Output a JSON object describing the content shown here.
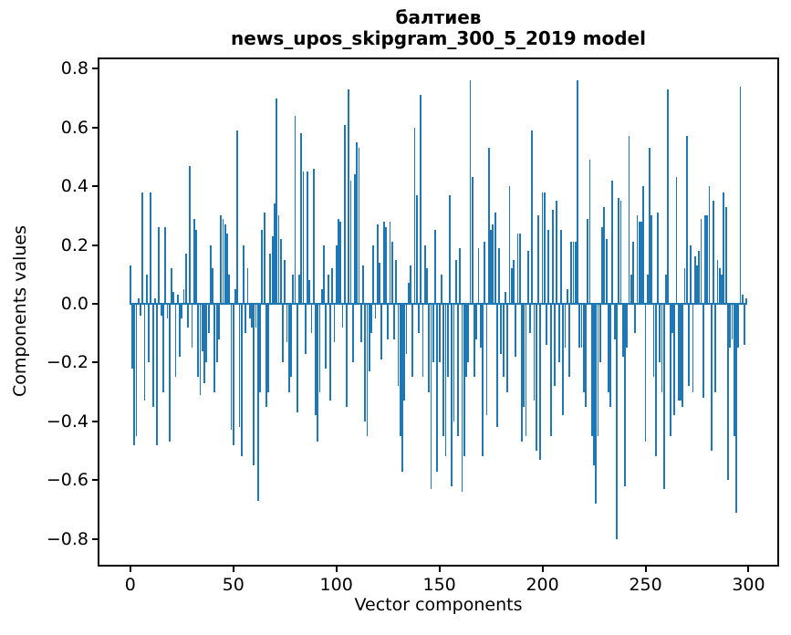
{
  "chart_data": {
    "type": "bar",
    "title": "балтиев",
    "subtitle": "news_upos_skipgram_300_5_2019 model",
    "xlabel": "Vector components",
    "ylabel": "Components values",
    "n_components": 300,
    "x_range": [
      0,
      299
    ],
    "xlim": [
      -14.95,
      313.95
    ],
    "ylim": [
      -0.888,
      0.832
    ],
    "grid": false,
    "legend": null,
    "bar_color": "#1f77b4",
    "axis_color": "#000000",
    "background_color": "#ffffff",
    "x_ticks": [
      0,
      50,
      100,
      150,
      200,
      250,
      300
    ],
    "x_tick_labels": [
      "0",
      "50",
      "100",
      "150",
      "200",
      "250",
      "300"
    ],
    "y_ticks": [
      -0.8,
      -0.6,
      -0.4,
      -0.2,
      0.0,
      0.2,
      0.4,
      0.6,
      0.8
    ],
    "y_tick_labels": [
      "−0.8",
      "−0.6",
      "−0.4",
      "−0.2",
      "0.0",
      "0.2",
      "0.4",
      "0.6",
      "0.8"
    ],
    "values": [
      0.13,
      -0.22,
      -0.48,
      -0.45,
      0.02,
      -0.04,
      0.38,
      -0.33,
      0.1,
      -0.2,
      0.38,
      -0.35,
      0.02,
      -0.48,
      0.26,
      -0.04,
      -0.3,
      0.26,
      -0.05,
      -0.47,
      0.12,
      0.04,
      -0.25,
      0.03,
      -0.18,
      -0.05,
      0.05,
      0.17,
      -0.08,
      0.47,
      -0.15,
      0.29,
      0.25,
      -0.25,
      -0.31,
      -0.16,
      -0.27,
      -0.2,
      -0.1,
      0.2,
      0.12,
      -0.3,
      -0.2,
      -0.12,
      0.3,
      0.29,
      0.27,
      0.24,
      0.1,
      -0.43,
      -0.48,
      0.05,
      0.59,
      -0.42,
      -0.52,
      0.2,
      -0.1,
      0.12,
      -0.05,
      -0.08,
      -0.55,
      -0.08,
      -0.67,
      -0.3,
      0.25,
      0.31,
      -0.35,
      -0.3,
      0.17,
      0.23,
      0.34,
      0.7,
      0.3,
      0.22,
      -0.2,
      0.15,
      -0.13,
      -0.3,
      -0.25,
      0.1,
      0.64,
      -0.37,
      0.1,
      0.58,
      0.45,
      -0.17,
      0.45,
      0.08,
      -0.1,
      0.46,
      -0.38,
      -0.47,
      -0.3,
      0.05,
      0.2,
      -0.22,
      0.1,
      -0.33,
      0.12,
      -0.13,
      0.2,
      0.29,
      0.28,
      -0.08,
      0.61,
      -0.35,
      0.73,
      0.42,
      -0.2,
      0.44,
      0.55,
      0.53,
      -0.13,
      0.13,
      -0.4,
      -0.45,
      -0.23,
      -0.1,
      0.2,
      -0.05,
      0.27,
      0.14,
      -0.19,
      0.28,
      0.26,
      -0.12,
      0.28,
      0.21,
      -0.12,
      0.15,
      -0.28,
      -0.45,
      -0.57,
      -0.33,
      -0.17,
      0.07,
      0.13,
      -0.25,
      0.6,
      0.37,
      -0.1,
      0.71,
      -0.25,
      0.2,
      0.12,
      -0.3,
      -0.63,
      -0.2,
      0.25,
      -0.57,
      -0.2,
      0.1,
      -0.45,
      -0.52,
      -0.25,
      0.37,
      -0.62,
      -0.4,
      0.15,
      -0.45,
      0.19,
      -0.64,
      -0.52,
      -0.25,
      -0.2,
      0.76,
      0.43,
      -0.25,
      -0.12,
      0.19,
      -0.15,
      -0.52,
      0.21,
      -0.38,
      0.53,
      0.25,
      0.27,
      0.31,
      -0.42,
      0.19,
      -0.17,
      -0.25,
      0.04,
      -0.3,
      0.4,
      0.12,
      0.15,
      -0.18,
      0.24,
      0.24,
      -0.47,
      -0.35,
      -0.45,
      0.18,
      -0.1,
      0.59,
      -0.33,
      -0.5,
      0.3,
      -0.53,
      0.38,
      0.38,
      -0.14,
      0.25,
      -0.45,
      0.32,
      -0.28,
      0.35,
      -0.2,
      0.25,
      -0.38,
      -0.15,
      0.05,
      -0.25,
      0.21,
      0.21,
      0.21,
      0.76,
      -0.15,
      -0.15,
      -0.3,
      -0.35,
      0.29,
      0.49,
      -0.45,
      -0.55,
      -0.68,
      -0.45,
      -0.2,
      0.26,
      0.33,
      0.22,
      -0.3,
      -0.35,
      0.42,
      -0.12,
      -0.8,
      0.36,
      0.35,
      -0.18,
      -0.62,
      -0.15,
      0.57,
      0.1,
      0.21,
      -0.1,
      0.3,
      0.28,
      0.28,
      0.4,
      -0.47,
      0.1,
      0.53,
      0.3,
      -0.25,
      -0.52,
      0.31,
      -0.2,
      -0.3,
      -0.63,
      0.1,
      0.73,
      -0.45,
      -0.1,
      -0.38,
      0.43,
      -0.33,
      -0.33,
      -0.35,
      0.12,
      0.57,
      -0.28,
      0.2,
      -0.3,
      0.16,
      0.13,
      0.18,
      0.29,
      -0.32,
      0.3,
      0.3,
      0.4,
      -0.5,
      0.35,
      -0.3,
      0.15,
      0.12,
      0.1,
      0.38,
      0.33,
      -0.6,
      -0.15,
      -0.12,
      -0.45,
      -0.71,
      -0.15,
      0.74,
      0.03,
      -0.14,
      0.02
    ]
  }
}
